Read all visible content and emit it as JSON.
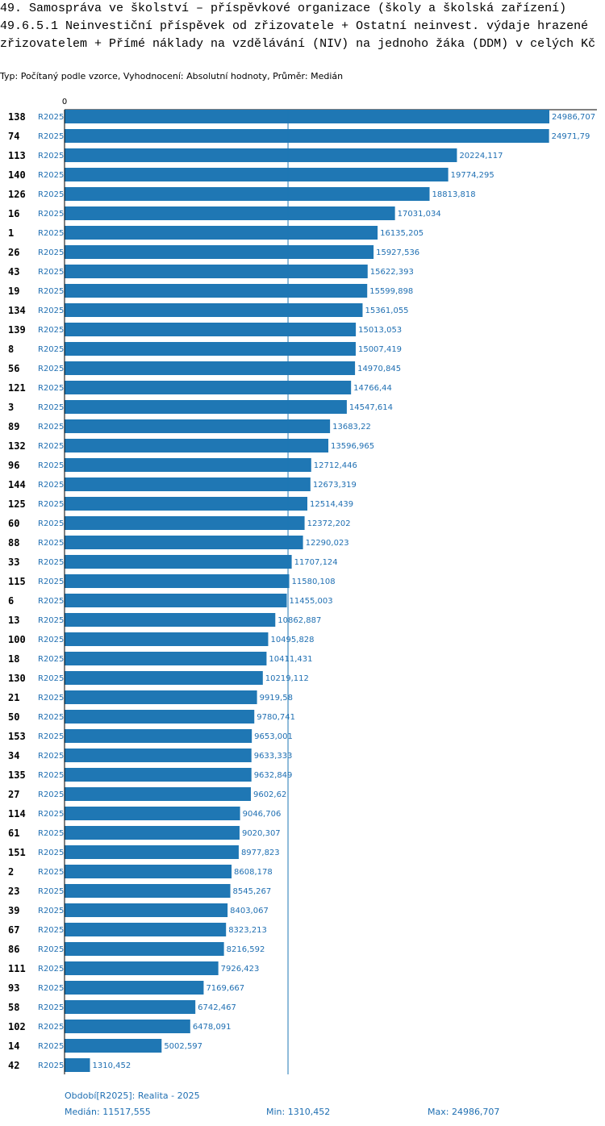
{
  "header": {
    "title_line1": "49. Samospráva ve školství – příspěvkové organizace (školy a školská zařízení)",
    "title_line2": "49.6.5.1 Neinvestiční příspěvek od zřizovatele + Ostatní neinvest. výdaje hrazené zřizovatelem + Přímé náklady na vzdělávání (NIV) na jednoho žáka (DDM) v celých Kč",
    "subtitle": "Typ: Počítaný podle vzorce, Vyhodnocení: Absolutní hodnoty, Průměr: Medián"
  },
  "chart_data": {
    "type": "bar",
    "orientation": "horizontal",
    "axis_zero_label": "0",
    "series_label": "R2025",
    "bar_color": "#1f77b4",
    "label_color": "#1f6fb2",
    "median": 11517.555,
    "xlim": [
      0,
      24986.707
    ],
    "categories": [
      "138",
      "74",
      "113",
      "140",
      "126",
      "16",
      "1",
      "26",
      "43",
      "19",
      "134",
      "139",
      "8",
      "56",
      "121",
      "3",
      "89",
      "132",
      "96",
      "144",
      "125",
      "60",
      "88",
      "33",
      "115",
      "6",
      "13",
      "100",
      "18",
      "130",
      "21",
      "50",
      "153",
      "34",
      "135",
      "27",
      "114",
      "61",
      "151",
      "2",
      "23",
      "39",
      "67",
      "86",
      "111",
      "93",
      "58",
      "102",
      "14",
      "42"
    ],
    "values": [
      24986.707,
      24971.79,
      20224.117,
      19774.295,
      18813.818,
      17031.034,
      16135.205,
      15927.536,
      15622.393,
      15599.898,
      15361.055,
      15013.053,
      15007.419,
      14970.845,
      14766.44,
      14547.614,
      13683.22,
      13596.965,
      12712.446,
      12673.319,
      12514.439,
      12372.202,
      12290.023,
      11707.124,
      11580.108,
      11455.003,
      10862.887,
      10495.828,
      10411.431,
      10219.112,
      9919.58,
      9780.741,
      9653.001,
      9633.333,
      9632.849,
      9602.62,
      9046.706,
      9020.307,
      8977.823,
      8608.178,
      8545.267,
      8403.067,
      8323.213,
      8216.592,
      7926.423,
      7169.667,
      6742.467,
      6478.091,
      5002.597,
      1310.452
    ],
    "value_labels": [
      "24986,707",
      "24971,79",
      "20224,117",
      "19774,295",
      "18813,818",
      "17031,034",
      "16135,205",
      "15927,536",
      "15622,393",
      "15599,898",
      "15361,055",
      "15013,053",
      "15007,419",
      "14970,845",
      "14766,44",
      "14547,614",
      "13683,22",
      "13596,965",
      "12712,446",
      "12673,319",
      "12514,439",
      "12372,202",
      "12290,023",
      "11707,124",
      "11580,108",
      "11455,003",
      "10862,887",
      "10495,828",
      "10411,431",
      "10219,112",
      "9919,58",
      "9780,741",
      "9653,001",
      "9633,333",
      "9632,849",
      "9602,62",
      "9046,706",
      "9020,307",
      "8977,823",
      "8608,178",
      "8545,267",
      "8403,067",
      "8323,213",
      "8216,592",
      "7926,423",
      "7169,667",
      "6742,467",
      "6478,091",
      "5002,597",
      "1310,452"
    ]
  },
  "footer": {
    "period": "Období[R2025]: Realita - 2025",
    "median": "Medián: 11517,555",
    "min": "Min: 1310,452",
    "max": "Max: 24986,707"
  }
}
